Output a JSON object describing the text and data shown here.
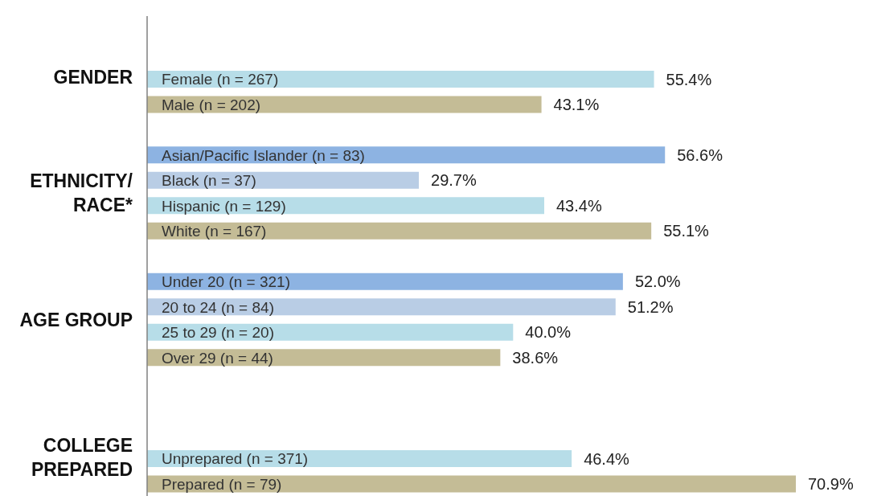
{
  "chart_data": {
    "type": "bar",
    "orientation": "horizontal",
    "categories": [
      null,
      null,
      "Female (n = 267)",
      "Male (n = 202)",
      null,
      "Asian/Pacific Islander (n = 83)",
      "Black (n = 37)",
      "Hispanic (n = 129)",
      "White (n = 167)",
      null,
      "Under 20 (n = 321)",
      "20 to 24 (n = 84)",
      "25 to 29 (n = 20)",
      "Over 29 (n = 44)",
      null,
      null,
      null,
      "Unprepared (n = 371)",
      "Prepared (n = 79)"
    ],
    "values": [
      null,
      null,
      55.4,
      43.1,
      null,
      56.6,
      29.7,
      43.4,
      55.1,
      null,
      52.0,
      51.2,
      40.0,
      38.6,
      null,
      null,
      null,
      46.4,
      70.9
    ],
    "value_labels": [
      null,
      null,
      "55.4%",
      "43.1%",
      null,
      "56.6%",
      "29.7%",
      "43.4%",
      "55.1%",
      null,
      "52.0%",
      "51.2%",
      "40.0%",
      "38.6%",
      null,
      null,
      null,
      "46.4%",
      "70.9%"
    ],
    "colors": [
      "#b7dde8",
      "#b7dde8",
      "#b7dde8",
      "#c4bc96",
      "#b7dde8",
      "#8db3e2",
      "#b9cde5",
      "#b7dde8",
      "#c4bc96",
      "#b7dde8",
      "#8db3e2",
      "#b9cde5",
      "#b7dde8",
      "#c4bc96",
      "#b7dde8",
      "#b7dde8",
      "#b7dde8",
      "#b7dde8",
      "#c4bc96"
    ],
    "annotations": [
      "GENDER",
      "ETHNICITY/\nRACE*",
      "AGE GROUP",
      "COLLEGE\nPREPARED"
    ]
  }
}
